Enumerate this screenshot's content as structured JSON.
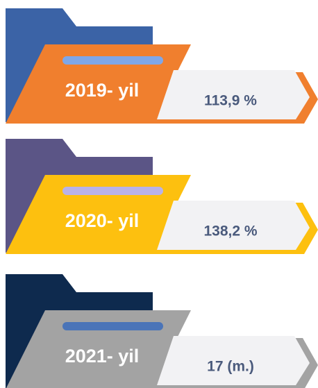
{
  "items": [
    {
      "label": "2019- yil",
      "value": "113,9 %",
      "back_color": "#3b63a6",
      "front_color": "#f07f2e",
      "bar_color": "#7fa7e8"
    },
    {
      "label": "2020- yil",
      "value": "138,2 %",
      "back_color": "#5b5586",
      "front_color": "#fdc00f",
      "bar_color": "#b9b2e9"
    },
    {
      "label": "2021- yil",
      "value": "17 (m.)",
      "back_color": "#0e2a4e",
      "front_color": "#a3a3a3",
      "bar_color": "#4a74b8"
    }
  ]
}
